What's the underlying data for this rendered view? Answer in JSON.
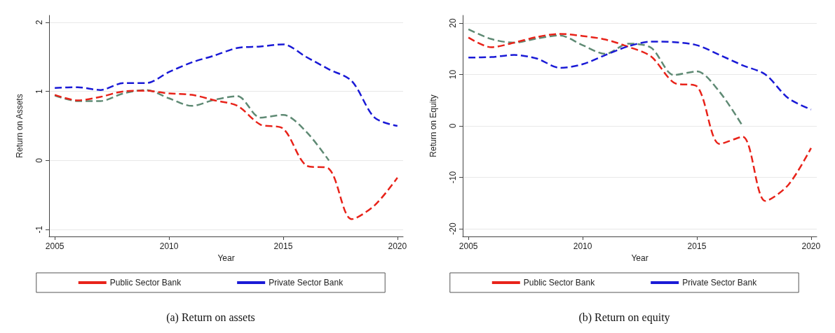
{
  "chart_data": [
    {
      "type": "line",
      "title": "(a) Return on assets",
      "xlabel": "Year",
      "ylabel": "Return on Assets",
      "x": [
        2005,
        2006,
        2007,
        2008,
        2009,
        2010,
        2011,
        2012,
        2013,
        2014,
        2015,
        2016,
        2017,
        2018,
        2019,
        2020
      ],
      "xlim": [
        2004.75,
        2020.25
      ],
      "xticks": [
        2005,
        2010,
        2015,
        2020
      ],
      "ylim": [
        -1.1,
        2.1
      ],
      "yticks": [
        -1,
        0,
        1,
        2
      ],
      "grid": "y",
      "legend": "bottom",
      "marker": "none",
      "series": [
        {
          "color": "#5f8a74",
          "line_style": "dashed",
          "values": [
            0.94,
            0.86,
            0.86,
            0.97,
            1.02,
            0.9,
            0.79,
            0.88,
            0.93,
            0.62,
            0.66,
            0.42,
            0.0,
            null,
            null,
            null
          ]
        },
        {
          "name": "Public Sector Bank",
          "color": "#e8231a",
          "line_style": "dashed",
          "values": [
            0.95,
            0.87,
            0.92,
            1.0,
            1.01,
            0.97,
            0.95,
            0.87,
            0.79,
            0.52,
            0.46,
            -0.07,
            -0.12,
            -0.85,
            -0.65,
            -0.25
          ]
        },
        {
          "name": "Private Sector Bank",
          "color": "#1a1ad6",
          "line_style": "dashed",
          "values": [
            1.05,
            1.06,
            1.02,
            1.12,
            1.12,
            1.28,
            1.42,
            1.52,
            1.63,
            1.65,
            1.68,
            1.5,
            1.32,
            1.15,
            0.62,
            0.5
          ]
        }
      ]
    },
    {
      "type": "line",
      "title": "(b) Return on equity",
      "xlabel": "Year",
      "ylabel": "Return on Equity",
      "x": [
        2005,
        2006,
        2007,
        2008,
        2009,
        2010,
        2011,
        2012,
        2013,
        2014,
        2015,
        2016,
        2017,
        2018,
        2019,
        2020
      ],
      "xlim": [
        2004.75,
        2020.25
      ],
      "xticks": [
        2005,
        2010,
        2015,
        2020
      ],
      "ylim": [
        -21.5,
        21.5
      ],
      "yticks": [
        -20,
        -10,
        0,
        10,
        20
      ],
      "grid": "y",
      "legend": "bottom",
      "marker": "none",
      "series": [
        {
          "color": "#5f8a74",
          "line_style": "dashed",
          "values": [
            18.8,
            16.9,
            16.2,
            17.0,
            17.6,
            15.7,
            14.0,
            16.0,
            15.2,
            9.9,
            10.6,
            6.6,
            0.0,
            null,
            null,
            null
          ]
        },
        {
          "name": "Public Sector Bank",
          "color": "#e8231a",
          "line_style": "dashed",
          "values": [
            17.2,
            15.3,
            16.2,
            17.3,
            17.9,
            17.5,
            16.8,
            15.4,
            13.5,
            8.4,
            7.7,
            -3.5,
            -2.1,
            -14.6,
            -11.5,
            -4.3
          ]
        },
        {
          "name": "Private Sector Bank",
          "color": "#1a1ad6",
          "line_style": "dashed",
          "values": [
            13.3,
            13.4,
            13.8,
            13.1,
            11.3,
            12.0,
            13.8,
            15.5,
            16.4,
            16.3,
            15.7,
            13.8,
            11.8,
            10.0,
            5.4,
            3.2
          ]
        }
      ]
    }
  ]
}
